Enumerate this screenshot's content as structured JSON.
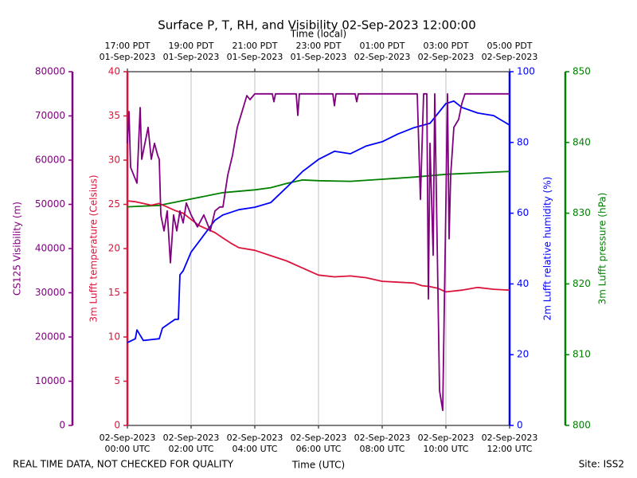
{
  "chart_data": {
    "type": "line",
    "title": "Surface P, T, RH, and Visibility 02-Sep-2023 12:00:00",
    "xlabel": "Time (UTC)",
    "x2label": "Time (local)",
    "footer_left": "REAL TIME DATA, NOT CHECKED FOR QUALITY",
    "footer_right": "Site: ISS2",
    "grid": true,
    "xlim": [
      0,
      12
    ],
    "xticks": [
      {
        "value": 0,
        "label": "02-Sep-2023\n00:00 UTC"
      },
      {
        "value": 2,
        "label": "02-Sep-2023\n02:00 UTC"
      },
      {
        "value": 4,
        "label": "02-Sep-2023\n04:00 UTC"
      },
      {
        "value": 6,
        "label": "02-Sep-2023\n06:00 UTC"
      },
      {
        "value": 8,
        "label": "02-Sep-2023\n08:00 UTC"
      },
      {
        "value": 10,
        "label": "02-Sep-2023\n10:00 UTC"
      },
      {
        "value": 12,
        "label": "02-Sep-2023\n12:00 UTC"
      }
    ],
    "x2ticks": [
      {
        "value": 0,
        "label": "17:00 PDT\n01-Sep-2023"
      },
      {
        "value": 2,
        "label": "19:00 PDT\n01-Sep-2023"
      },
      {
        "value": 4,
        "label": "21:00 PDT\n01-Sep-2023"
      },
      {
        "value": 6,
        "label": "23:00 PDT\n01-Sep-2023"
      },
      {
        "value": 8,
        "label": "01:00 PDT\n02-Sep-2023"
      },
      {
        "value": 10,
        "label": "03:00 PDT\n02-Sep-2023"
      },
      {
        "value": 12,
        "label": "05:00 PDT\n02-Sep-2023"
      }
    ],
    "axes": [
      {
        "label": "CS125 Visibility (m)",
        "color": "#800080",
        "side": "left",
        "lim": [
          0,
          80000
        ],
        "ticks": [
          0,
          10000,
          20000,
          30000,
          40000,
          50000,
          60000,
          70000,
          80000
        ]
      },
      {
        "label": "3m Lufft temperature (Celsius)",
        "color": "#dc143c",
        "side": "left",
        "lim": [
          0,
          40
        ],
        "ticks": [
          0,
          5,
          10,
          15,
          20,
          25,
          30,
          35,
          40
        ]
      },
      {
        "label": "2m Lufft relative humidity (%)",
        "color": "#0000ff",
        "side": "right",
        "lim": [
          0,
          100
        ],
        "ticks": [
          0,
          20,
          40,
          60,
          80,
          100
        ]
      },
      {
        "label": "3m Lufft pressure (hPa)",
        "color": "#008000",
        "side": "right",
        "lim": [
          800,
          850
        ],
        "ticks": [
          800,
          810,
          820,
          830,
          840,
          850
        ]
      }
    ],
    "series": [
      {
        "axis": 3,
        "color": "#008000",
        "x": [
          0,
          1,
          2,
          3,
          4,
          4.5,
          5,
          5.5,
          6,
          7,
          8,
          9,
          10,
          11,
          12
        ],
        "values": [
          830.9,
          831.1,
          832,
          832.9,
          833.3,
          833.6,
          834.2,
          834.7,
          834.6,
          834.5,
          834.8,
          835.1,
          835.5,
          835.7,
          835.9
        ]
      },
      {
        "axis": 1,
        "color": "#dc143c",
        "x": [
          0,
          0.25,
          0.5,
          0.75,
          1,
          1.25,
          1.5,
          1.75,
          2,
          2.25,
          2.5,
          2.75,
          3,
          3.25,
          3.5,
          4,
          4.5,
          5,
          5.5,
          6,
          6.5,
          7,
          7.5,
          8,
          8.5,
          9,
          9.25,
          9.5,
          9.75,
          10,
          10.5,
          11,
          11.5,
          12
        ],
        "values": [
          25.4,
          25.3,
          25.1,
          24.9,
          25.1,
          24.7,
          24.3,
          24.0,
          23.3,
          22.6,
          22.2,
          21.8,
          21.2,
          20.6,
          20.1,
          19.8,
          19.2,
          18.6,
          17.8,
          17.0,
          16.8,
          16.9,
          16.7,
          16.3,
          16.2,
          16.1,
          15.8,
          15.7,
          15.5,
          15.1,
          15.3,
          15.6,
          15.4,
          15.3
        ]
      },
      {
        "axis": 2,
        "color": "#0000ff",
        "x": [
          0,
          0.25,
          0.3,
          0.4,
          0.5,
          1,
          1.1,
          1.5,
          1.6,
          1.65,
          1.75,
          2,
          2.5,
          2.75,
          3,
          3.5,
          4,
          4.5,
          5,
          5.5,
          6,
          6.5,
          7,
          7.5,
          8,
          8.5,
          9,
          9.5,
          10,
          10.25,
          10.5,
          11,
          11.5,
          12
        ],
        "values": [
          23.4,
          24.5,
          27,
          25.5,
          24,
          24.5,
          27.5,
          30,
          30,
          42.6,
          43.7,
          49,
          55,
          58,
          59.5,
          61,
          61.7,
          63,
          67.3,
          71.8,
          75.2,
          77.5,
          76.8,
          79,
          80.2,
          82.4,
          84.2,
          85.4,
          91,
          91.7,
          89.9,
          88.3,
          87.6,
          84.9
        ]
      },
      {
        "axis": 0,
        "color": "#800080",
        "x": [
          0,
          0.05,
          0.1,
          0.2,
          0.3,
          0.4,
          0.45,
          0.55,
          0.65,
          0.75,
          0.85,
          0.95,
          1.0,
          1.05,
          1.15,
          1.25,
          1.35,
          1.45,
          1.55,
          1.65,
          1.75,
          1.85,
          2.0,
          2.2,
          2.4,
          2.6,
          2.75,
          2.9,
          3.0,
          3.15,
          3.3,
          3.45,
          3.6,
          3.75,
          3.85,
          4.0,
          4.55,
          4.6,
          4.65,
          5.3,
          5.35,
          5.4,
          6.45,
          6.5,
          6.55,
          7.15,
          7.2,
          7.25,
          9.1,
          9.2,
          9.3,
          9.4,
          9.45,
          9.5,
          9.6,
          9.65,
          9.8,
          9.9,
          10.0,
          10.05,
          10.1,
          10.15,
          10.25,
          10.4,
          10.5,
          10.6,
          12
        ],
        "values": [
          63800,
          71000,
          58400,
          56600,
          54800,
          71900,
          60200,
          63800,
          67400,
          60200,
          63800,
          61100,
          60200,
          47600,
          44000,
          48500,
          36800,
          47600,
          44000,
          48500,
          45800,
          50300,
          47600,
          44900,
          47600,
          44000,
          48500,
          49400,
          49400,
          56600,
          61100,
          67400,
          71000,
          74600,
          73700,
          75000,
          75000,
          73200,
          75000,
          75000,
          70100,
          75000,
          75000,
          72300,
          75000,
          75000,
          73200,
          75000,
          75000,
          51100,
          75000,
          75000,
          28600,
          63800,
          38500,
          75000,
          7900,
          3400,
          50300,
          75000,
          42200,
          56600,
          67400,
          69200,
          72800,
          75000,
          75000
        ]
      }
    ]
  }
}
